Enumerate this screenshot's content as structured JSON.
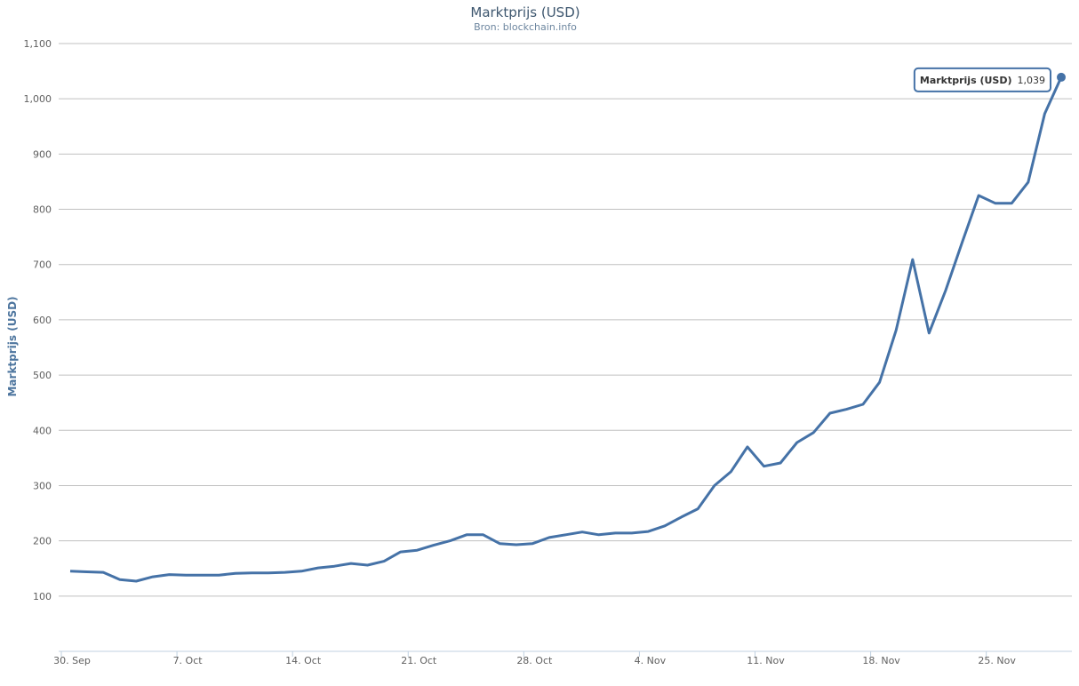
{
  "chart_data": {
    "type": "line",
    "title": "Marktprijs (USD)",
    "subtitle": "Bron: blockchain.info",
    "y_label": "Marktprijs (USD)",
    "categories": [
      "30. Sep",
      null,
      null,
      null,
      null,
      null,
      null,
      "7. Oct",
      null,
      null,
      null,
      null,
      null,
      null,
      "14. Oct",
      null,
      null,
      null,
      null,
      null,
      null,
      "21. Oct",
      null,
      null,
      null,
      null,
      null,
      null,
      "28. Oct",
      null,
      null,
      null,
      null,
      null,
      null,
      "4. Nov",
      null,
      null,
      null,
      null,
      null,
      null,
      "11. Nov",
      null,
      null,
      null,
      null,
      null,
      null,
      "18. Nov",
      null,
      null,
      null,
      null,
      null,
      null,
      "25. Nov",
      null,
      null,
      null,
      null
    ],
    "series": [
      {
        "name": "Marktprijs (USD)",
        "color": "#4572a7",
        "values": [
          145,
          144,
          143,
          130,
          127,
          135,
          139,
          138,
          138,
          138,
          141,
          142,
          142,
          143,
          145,
          151,
          154,
          159,
          156,
          163,
          180,
          183,
          192,
          200,
          211,
          211,
          195,
          193,
          195,
          206,
          211,
          216,
          211,
          214,
          214,
          217,
          227,
          243,
          258,
          300,
          325,
          370,
          335,
          341,
          378,
          396,
          431,
          438,
          447,
          487,
          581,
          709,
          576,
          653,
          740,
          825,
          811,
          811,
          849,
          973,
          1039
        ],
        "value_labels": [
          null,
          null,
          null,
          null,
          null,
          null,
          null,
          null,
          null,
          null,
          null,
          null,
          null,
          null,
          null,
          null,
          null,
          null,
          null,
          null,
          null,
          null,
          null,
          null,
          null,
          null,
          null,
          null,
          null,
          null,
          null,
          null,
          null,
          null,
          null,
          null,
          null,
          null,
          null,
          null,
          null,
          null,
          null,
          null,
          null,
          null,
          null,
          null,
          null,
          null,
          null,
          null,
          null,
          null,
          null,
          null,
          null,
          null,
          null,
          null,
          "1,039"
        ]
      }
    ],
    "ylim": [
      0,
      1100
    ],
    "yticks": [
      100,
      200,
      300,
      400,
      500,
      600,
      700,
      800,
      900,
      {
        "value": 1000,
        "label": "1,000"
      },
      {
        "value": 1100,
        "label": "1,100"
      }
    ],
    "grid": true
  }
}
